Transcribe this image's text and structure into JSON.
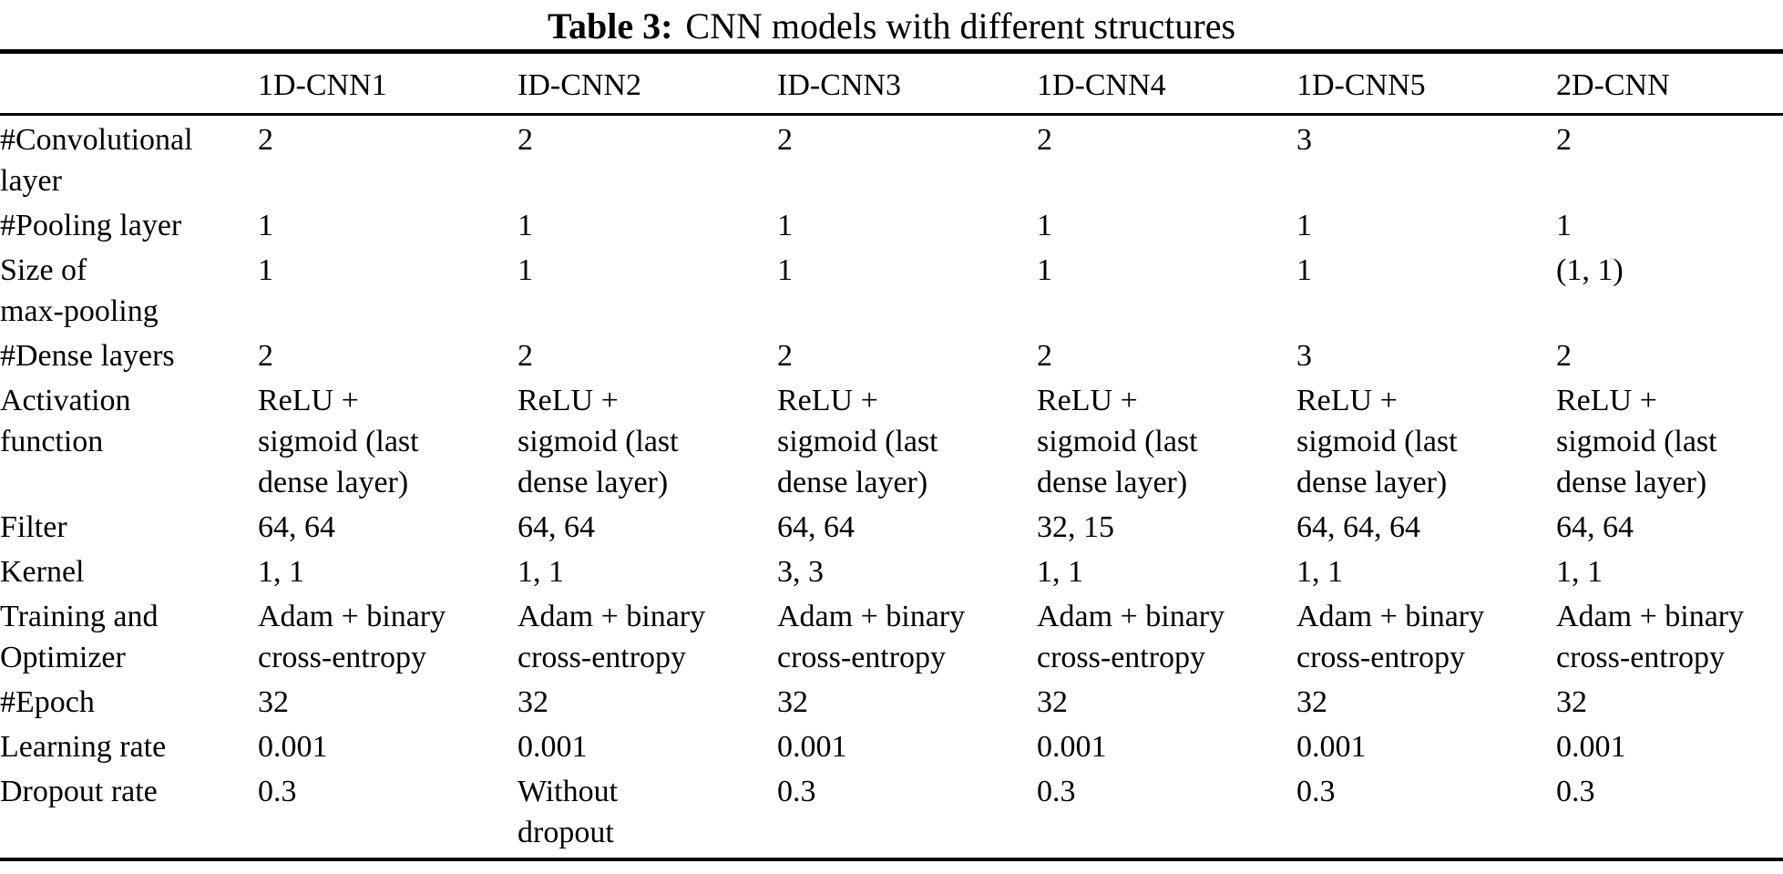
{
  "title": {
    "label": "Table 3:",
    "text": "CNN models with different structures"
  },
  "table": {
    "columns": [
      "",
      "1D-CNN1",
      "ID-CNN2",
      "ID-CNN3",
      "1D-CNN4",
      "1D-CNN5",
      "2D-CNN"
    ],
    "rows": [
      {
        "label": "#Convolutional\nlayer",
        "values": [
          "2",
          "2",
          "2",
          "2",
          "3",
          "2"
        ]
      },
      {
        "label": "#Pooling layer",
        "values": [
          "1",
          "1",
          "1",
          "1",
          "1",
          "1"
        ]
      },
      {
        "label": "Size of\nmax-pooling",
        "values": [
          "1",
          "1",
          "1",
          "1",
          "1",
          "(1, 1)"
        ]
      },
      {
        "label": "#Dense layers",
        "values": [
          "2",
          "2",
          "2",
          "2",
          "3",
          "2"
        ]
      },
      {
        "label": "Activation\nfunction",
        "values": [
          "ReLU +\nsigmoid (last\ndense layer)",
          "ReLU +\nsigmoid (last\ndense layer)",
          "ReLU +\nsigmoid (last\ndense layer)",
          "ReLU +\nsigmoid (last\ndense layer)",
          "ReLU +\nsigmoid (last\ndense layer)",
          "ReLU +\nsigmoid (last\ndense layer)"
        ]
      },
      {
        "label": "Filter",
        "values": [
          "64, 64",
          "64, 64",
          "64, 64",
          "32, 15",
          "64, 64, 64",
          "64, 64"
        ]
      },
      {
        "label": "Kernel",
        "values": [
          "1, 1",
          "1, 1",
          "3, 3",
          "1, 1",
          "1, 1",
          "1, 1"
        ]
      },
      {
        "label": "Training and\nOptimizer",
        "values": [
          "Adam + binary\ncross-entropy",
          "Adam + binary\ncross-entropy",
          "Adam + binary\ncross-entropy",
          "Adam + binary\ncross-entropy",
          "Adam + binary\ncross-entropy",
          "Adam + binary\ncross-entropy"
        ]
      },
      {
        "label": "#Epoch",
        "values": [
          "32",
          "32",
          "32",
          "32",
          "32",
          "32"
        ]
      },
      {
        "label": "Learning rate",
        "values": [
          "0.001",
          "0.001",
          "0.001",
          "0.001",
          "0.001",
          "0.001"
        ]
      },
      {
        "label": "Dropout rate",
        "values": [
          "0.3",
          "Without\ndropout",
          "0.3",
          "0.3",
          "0.3",
          "0.3"
        ]
      }
    ]
  },
  "colors": {
    "background": "#ffffff",
    "text": "#000000",
    "rule": "#000000"
  }
}
